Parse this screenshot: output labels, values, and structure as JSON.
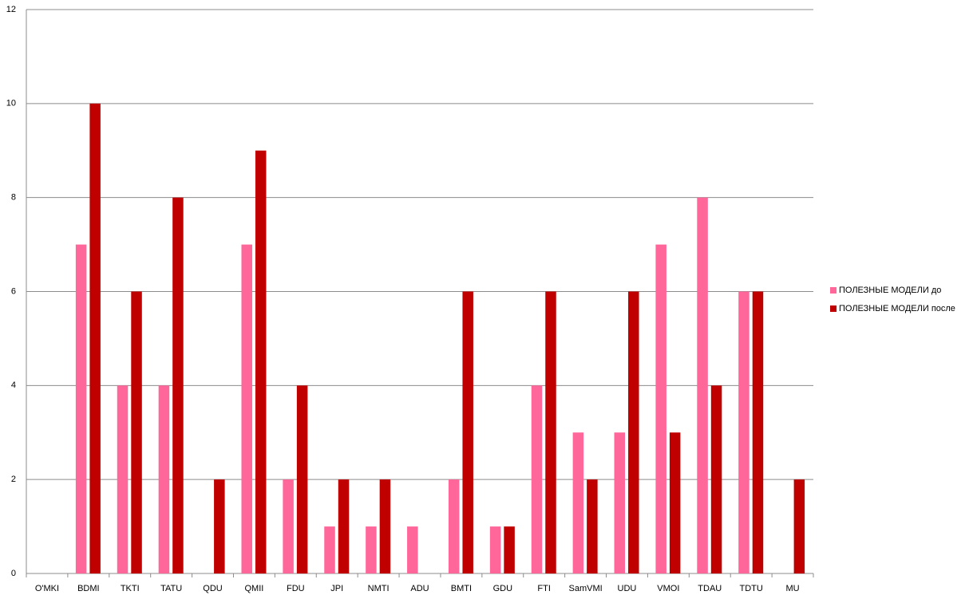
{
  "chart_data": {
    "type": "bar",
    "categories": [
      "O'MKI",
      "BDMI",
      "TKTI",
      "TATU",
      "QDU",
      "QMII",
      "FDU",
      "JPI",
      "NMTI",
      "ADU",
      "BMTI",
      "GDU",
      "FTI",
      "SamVMI",
      "UDU",
      "VMOI",
      "TDAU",
      "TDTU",
      "MU"
    ],
    "series": [
      {
        "name": "ПОЛЕЗНЫЕ МОДЕЛИ до",
        "color": "#ff6699",
        "values": [
          0,
          7,
          4,
          4,
          0,
          7,
          2,
          1,
          1,
          1,
          2,
          1,
          4,
          3,
          3,
          7,
          8,
          6,
          0
        ]
      },
      {
        "name": "ПОЛЕЗНЫЕ МОДЕЛИ после",
        "color": "#c00000",
        "values": [
          0,
          10,
          6,
          8,
          2,
          9,
          4,
          2,
          2,
          0,
          6,
          1,
          6,
          2,
          6,
          3,
          4,
          6,
          2
        ]
      }
    ],
    "ylim": [
      0,
      12
    ],
    "yticks": [
      0,
      2,
      4,
      6,
      8,
      10,
      12
    ],
    "grid": true,
    "legend": "right"
  }
}
